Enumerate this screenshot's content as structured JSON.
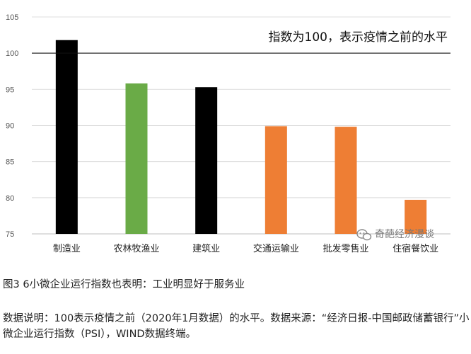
{
  "chart_data": {
    "type": "bar",
    "categories": [
      "制造业",
      "农林牧渔业",
      "建筑业",
      "交通运输业",
      "批发零售业",
      "住宿餐饮业"
    ],
    "values": [
      101.8,
      95.8,
      95.3,
      89.9,
      89.8,
      79.7
    ],
    "colors": [
      "#000000",
      "#6aab47",
      "#000000",
      "#ee7e34",
      "#ee7e34",
      "#ee7e34"
    ],
    "yticks": [
      75,
      80,
      85,
      90,
      95,
      100,
      105
    ],
    "ylim": [
      75,
      105
    ],
    "reference_line": {
      "value": 100,
      "label": "指数为100，表示疫情之前的水平"
    },
    "grid": true,
    "title": "",
    "xlabel": "",
    "ylabel": ""
  },
  "watermark": "奇葩经济漫谈",
  "caption": "图3  6小微企业运行指数也表明：工业明显好于服务业",
  "notes": "数据说明：100表示疫情之前（2020年1月数据）的水平。数据来源：“经济日报-中国邮政储蓄银行”小微企业运行指数（PSI），WIND数据终端。"
}
